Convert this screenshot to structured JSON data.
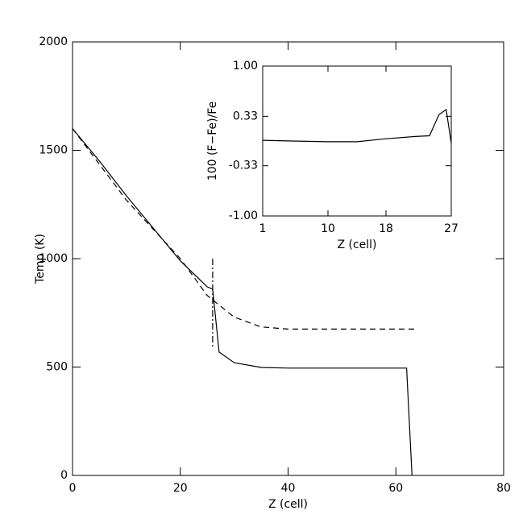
{
  "chart_data": [
    {
      "type": "line",
      "xlabel": "Z (cell)",
      "ylabel": "Temp (K)",
      "xlim": [
        0,
        80
      ],
      "xticks": [
        0,
        20,
        40,
        60,
        80
      ],
      "ylim": [
        0,
        2000
      ],
      "yticks": [
        0,
        500,
        1000,
        1500,
        2000
      ],
      "series": [
        {
          "color": "#000000",
          "dash": "solid",
          "x": [
            0,
            5,
            10,
            15,
            20,
            25,
            26,
            27.2,
            30,
            35,
            40,
            62,
            63
          ],
          "values": [
            1600,
            1450,
            1290,
            1140,
            990,
            870,
            860,
            569,
            520,
            498,
            495,
            495,
            0
          ]
        },
        {
          "color": "#000000",
          "dash": "dashed",
          "x": [
            0,
            10,
            20,
            25,
            30,
            35,
            40,
            64
          ],
          "values": [
            1600,
            1270,
            1000,
            830,
            730,
            685,
            675,
            675
          ]
        },
        {
          "color": "#000000",
          "dash": "dashdot",
          "x": [
            26,
            26
          ],
          "values": [
            1000,
            590
          ]
        }
      ]
    },
    {
      "type": "line",
      "xlabel": "Z (cell)",
      "ylabel": "100 (F−Fe)/Fe",
      "xlim": [
        1,
        27
      ],
      "xticks": [
        1,
        10,
        18,
        27
      ],
      "ylim": [
        -1,
        1
      ],
      "yticks": [
        {
          "value": -1,
          "label": "-1.00"
        },
        {
          "value": -0.33,
          "label": "-0.33"
        },
        {
          "value": 0.33,
          "label": "0.33"
        },
        {
          "value": 1,
          "label": "1.00"
        }
      ],
      "series": [
        {
          "color": "#000000",
          "dash": "solid",
          "x": [
            1,
            5,
            10,
            14,
            18,
            22,
            24,
            25.3,
            26.3,
            27
          ],
          "values": [
            0.01,
            0,
            -0.01,
            -0.01,
            0.03,
            0.06,
            0.07,
            0.35,
            0.42,
            -0.03
          ]
        }
      ]
    }
  ]
}
